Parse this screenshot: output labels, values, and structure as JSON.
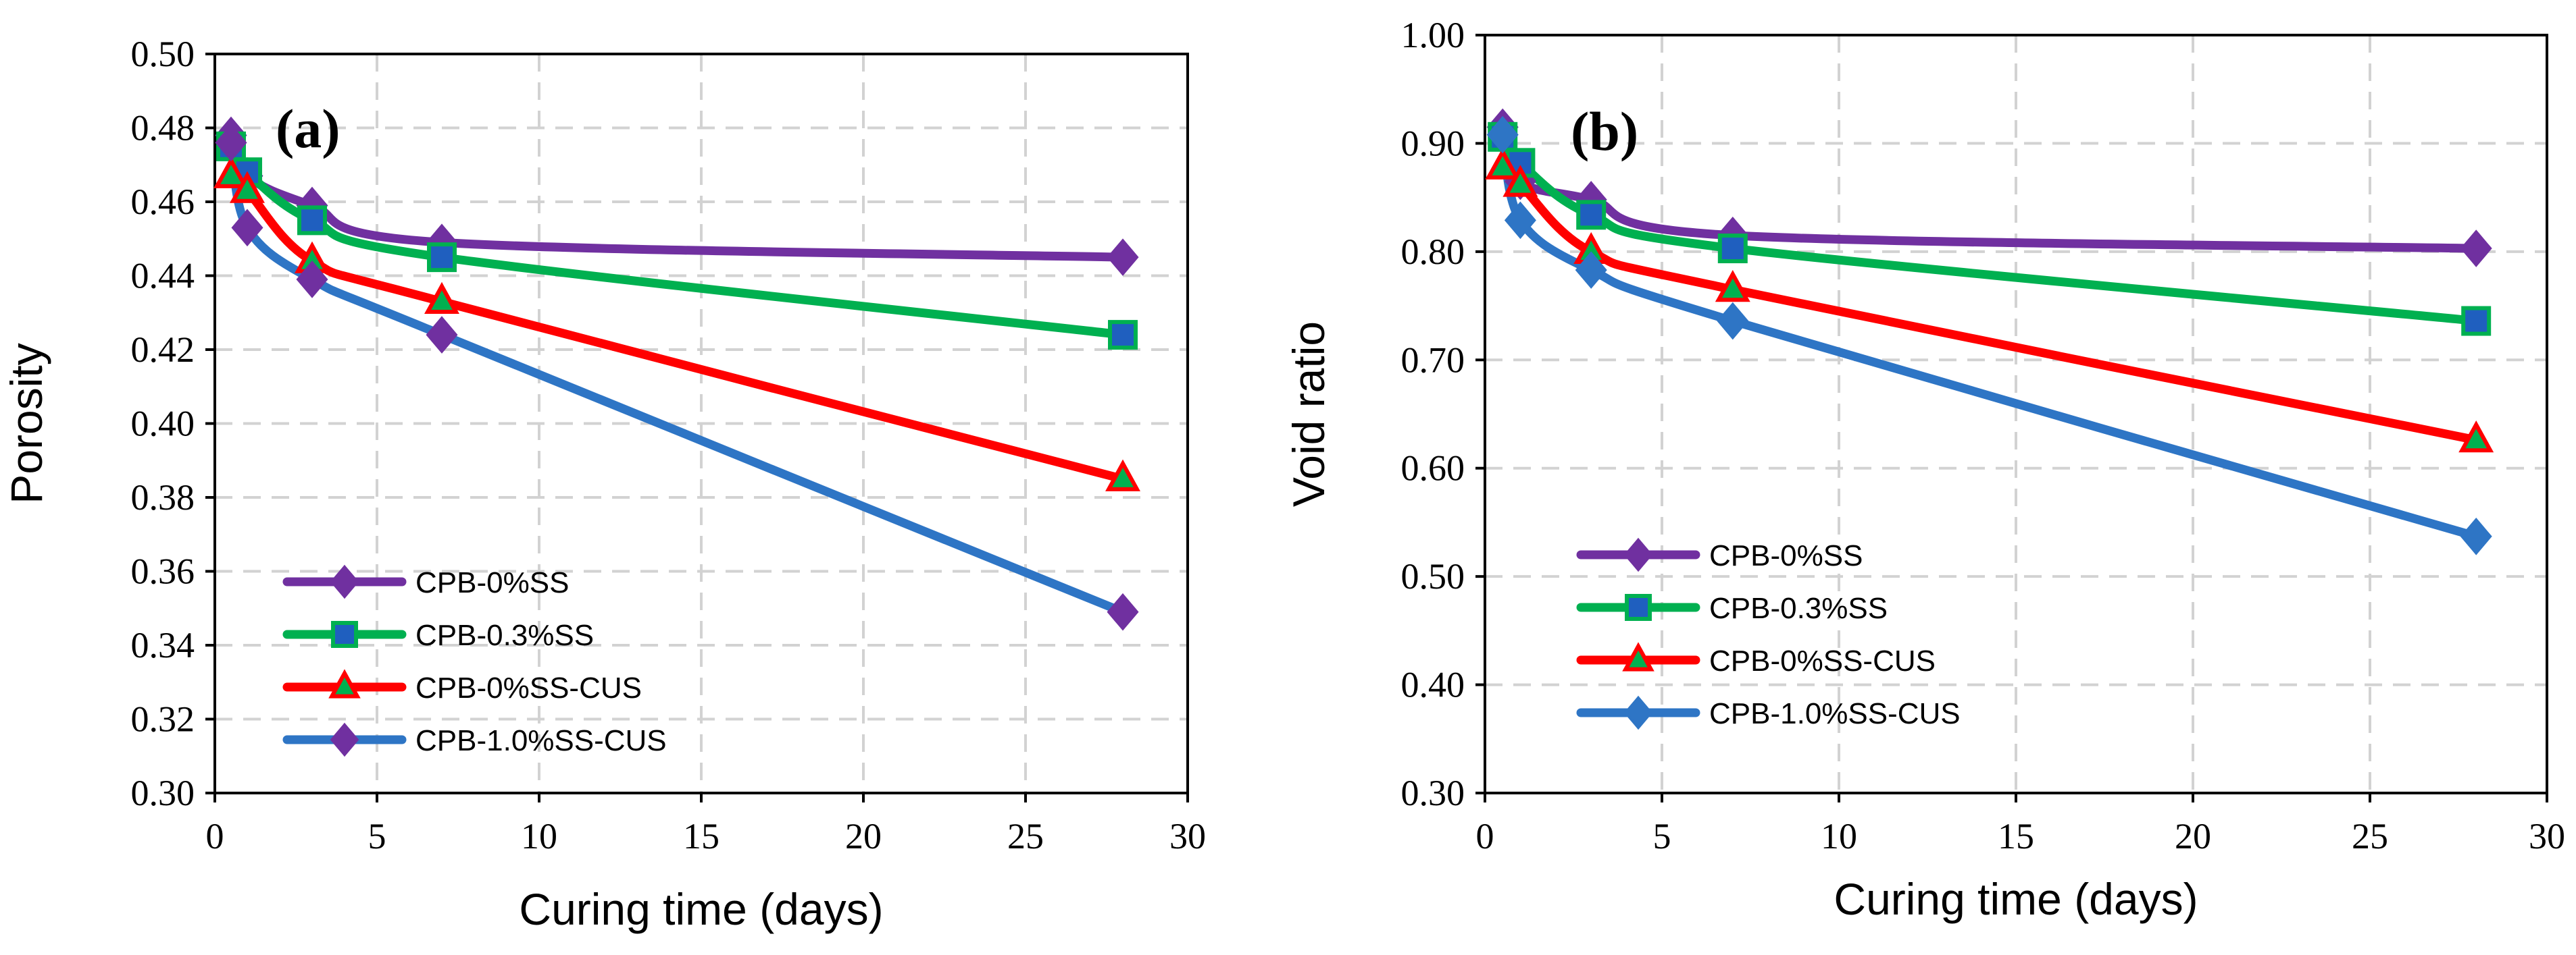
{
  "chart_data": [
    {
      "type": "line",
      "panel_label": "(a)",
      "xlabel": "Curing time (days)",
      "ylabel": "Porosity",
      "xlim": [
        0,
        30
      ],
      "ylim": [
        0.3,
        0.5
      ],
      "xticks": [
        0,
        5,
        10,
        15,
        20,
        25,
        30
      ],
      "yticks": [
        0.3,
        0.32,
        0.34,
        0.36,
        0.38,
        0.4,
        0.42,
        0.44,
        0.46,
        0.48,
        0.5
      ],
      "ytick_decimals": 2,
      "grid": true,
      "legend_position": "bottom-left",
      "series": [
        {
          "name": "CPB-0%SS",
          "color": "#7030a0",
          "marker_fill": "#7030a0",
          "marker_edge": "#7030a0",
          "marker": "diamond",
          "x": [
            0.5,
            1,
            3,
            7,
            28
          ],
          "y": [
            0.478,
            0.467,
            0.459,
            0.449,
            0.445
          ]
        },
        {
          "name": "CPB-0.3%SS",
          "color": "#00b050",
          "marker_fill": "#1f5fbf",
          "marker_edge": "#00b050",
          "marker": "square",
          "x": [
            0.5,
            1,
            3,
            7,
            28
          ],
          "y": [
            0.475,
            0.468,
            0.455,
            0.445,
            0.424
          ]
        },
        {
          "name": "CPB-0%SS-CUS",
          "color": "#ff0000",
          "marker_fill": "#00b050",
          "marker_edge": "#ff0000",
          "marker": "triangle",
          "x": [
            0.5,
            1,
            3,
            7,
            28
          ],
          "y": [
            0.467,
            0.463,
            0.444,
            0.433,
            0.385
          ]
        },
        {
          "name": "CPB-1.0%SS-CUS",
          "color": "#2e75c5",
          "marker_fill": "#7030a0",
          "marker_edge": "#7030a0",
          "marker": "diamond",
          "x": [
            0.5,
            1,
            3,
            7,
            28
          ],
          "y": [
            0.476,
            0.453,
            0.439,
            0.424,
            0.349
          ]
        }
      ]
    },
    {
      "type": "line",
      "panel_label": "(b)",
      "xlabel": "Curing time (days)",
      "ylabel": "Void ratio",
      "xlim": [
        0,
        30
      ],
      "ylim": [
        0.3,
        1.0
      ],
      "xticks": [
        0,
        5,
        10,
        15,
        20,
        25,
        30
      ],
      "yticks": [
        0.3,
        0.4,
        0.5,
        0.6,
        0.7,
        0.8,
        0.9,
        1.0
      ],
      "ytick_decimals": 2,
      "grid": true,
      "legend_position": "center-left",
      "series": [
        {
          "name": "CPB-0%SS",
          "color": "#7030a0",
          "marker_fill": "#7030a0",
          "marker_edge": "#7030a0",
          "marker": "diamond",
          "x": [
            0.5,
            1,
            3,
            7,
            28
          ],
          "y": [
            0.915,
            0.865,
            0.848,
            0.815,
            0.803
          ]
        },
        {
          "name": "CPB-0.3%SS",
          "color": "#00b050",
          "marker_fill": "#1f5fbf",
          "marker_edge": "#00b050",
          "marker": "square",
          "x": [
            0.5,
            1,
            3,
            7,
            28
          ],
          "y": [
            0.906,
            0.882,
            0.834,
            0.803,
            0.736
          ]
        },
        {
          "name": "CPB-0%SS-CUS",
          "color": "#ff0000",
          "marker_fill": "#00b050",
          "marker_edge": "#ff0000",
          "marker": "triangle",
          "x": [
            0.5,
            1,
            3,
            7,
            28
          ],
          "y": [
            0.878,
            0.862,
            0.8,
            0.765,
            0.626
          ]
        },
        {
          "name": "CPB-1.0%SS-CUS",
          "color": "#2e75c5",
          "marker_fill": "#2e75c5",
          "marker_edge": "#2e75c5",
          "marker": "diamond",
          "x": [
            0.5,
            1,
            3,
            7,
            28
          ],
          "y": [
            0.908,
            0.829,
            0.783,
            0.736,
            0.537
          ]
        }
      ]
    }
  ]
}
